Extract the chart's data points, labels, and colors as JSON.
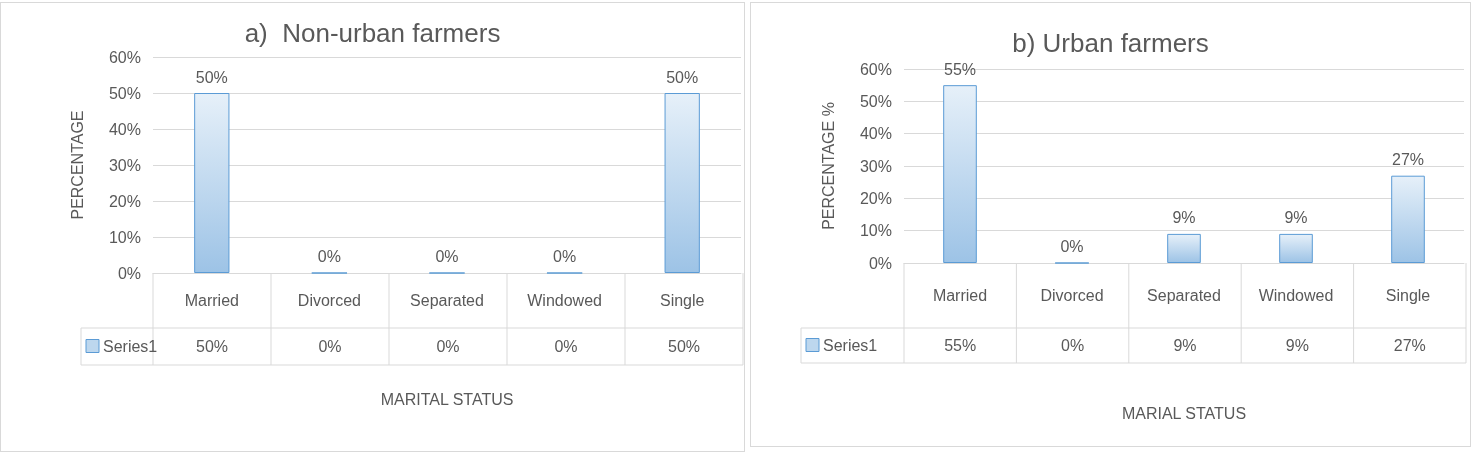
{
  "chart_data": [
    {
      "type": "bar",
      "title": "a)  Non-urban farmers",
      "xlabel": "MARITAL STATUS",
      "ylabel": "PERCENTAGE",
      "categories": [
        "Married",
        "Divorced",
        "Separated",
        "Windowed",
        "Single"
      ],
      "series": [
        {
          "name": "Series1",
          "color": "#5b9bd5",
          "values": [
            50,
            0,
            0,
            0,
            50
          ],
          "value_labels": [
            "50%",
            "0%",
            "0%",
            "0%",
            "50%"
          ]
        }
      ],
      "ylim": [
        0,
        60
      ],
      "yticks": [
        {
          "value": 0,
          "label": "0%"
        },
        {
          "value": 10,
          "label": "10%"
        },
        {
          "value": 20,
          "label": "20%"
        },
        {
          "value": 30,
          "label": "30%"
        },
        {
          "value": 40,
          "label": "40%"
        },
        {
          "value": 50,
          "label": "50%"
        },
        {
          "value": 60,
          "label": "60%"
        }
      ],
      "grid": "y",
      "legend": "bottom"
    },
    {
      "type": "bar",
      "title": "b) Urban farmers",
      "xlabel": "MARIAL STATUS",
      "ylabel": "PERCENTAGE %",
      "categories": [
        "Married",
        "Divorced",
        "Separated",
        "Windowed",
        "Single"
      ],
      "series": [
        {
          "name": "Series1",
          "color": "#5b9bd5",
          "values": [
            55,
            0,
            9,
            9,
            27
          ],
          "value_labels": [
            "55%",
            "0%",
            "9%",
            "9%",
            "27%"
          ]
        }
      ],
      "ylim": [
        0,
        60
      ],
      "yticks": [
        {
          "value": 0,
          "label": "0%"
        },
        {
          "value": 10,
          "label": "10%"
        },
        {
          "value": 20,
          "label": "20%"
        },
        {
          "value": 30,
          "label": "30%"
        },
        {
          "value": 40,
          "label": "40%"
        },
        {
          "value": 50,
          "label": "50%"
        },
        {
          "value": 60,
          "label": "60%"
        }
      ],
      "grid": "y",
      "legend": "bottom"
    }
  ]
}
